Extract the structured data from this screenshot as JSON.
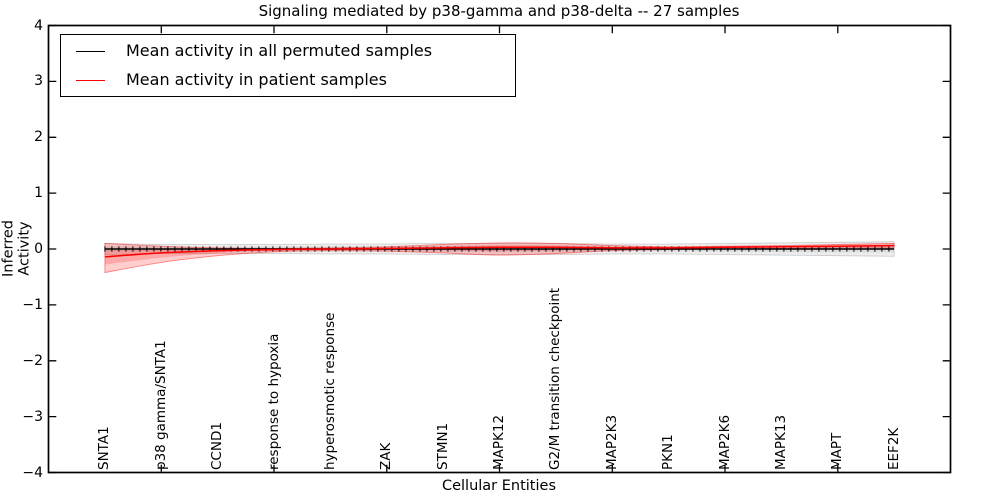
{
  "chart_data": {
    "type": "line",
    "title": "Signaling mediated by p38-gamma and p38-delta -- 27 samples",
    "xlabel": "Cellular Entities",
    "ylabel": "Inferred Activity",
    "xlim": [
      0,
      16
    ],
    "ylim": [
      -4,
      4
    ],
    "ytick_labels": [
      "4",
      "3",
      "2",
      "1",
      "0",
      "−1",
      "−2",
      "−3",
      "−4"
    ],
    "ytick_values": [
      4,
      3,
      2,
      1,
      0,
      -1,
      -2,
      -3,
      -4
    ],
    "xtick_values": [
      2,
      4,
      6,
      8,
      10,
      12,
      14
    ],
    "grid": false,
    "legend_position": "upper left",
    "categories": [
      "SNTA1",
      "p38 gamma/SNTA1",
      "CCND1",
      "response to hypoxia",
      "hyperosmotic response",
      "ZAK",
      "STMN1",
      "MAPK12",
      "G2/M transition checkpoint",
      "MAP2K3",
      "PKN1",
      "MAP2K6",
      "MAPK13",
      "MAPT",
      "EEF2K"
    ],
    "x": [
      1,
      2,
      3,
      4,
      5,
      6,
      7,
      8,
      9,
      10,
      11,
      12,
      13,
      14,
      15
    ],
    "series": [
      {
        "name": "Mean activity in all permuted samples",
        "color": "#000000",
        "marker": "plus-ticks",
        "values": [
          0,
          0,
          0,
          0,
          0,
          0,
          0,
          0,
          0,
          0,
          0,
          0,
          0,
          0,
          0
        ],
        "band_upper": [
          0.1,
          0.08,
          0.08,
          0.08,
          0.09,
          0.09,
          0.1,
          0.1,
          0.1,
          0.09,
          0.09,
          0.1,
          0.11,
          0.12,
          0.13
        ],
        "band_lower": [
          -0.1,
          -0.08,
          -0.08,
          -0.08,
          -0.09,
          -0.09,
          -0.1,
          -0.1,
          -0.1,
          -0.09,
          -0.09,
          -0.1,
          -0.11,
          -0.12,
          -0.13
        ],
        "band_color": "#000000",
        "band_alpha": 0.07
      },
      {
        "name": "Mean activity in patient samples",
        "color": "#ff0000",
        "marker": "none",
        "values": [
          -0.14,
          -0.07,
          -0.03,
          -0.01,
          0.0,
          0.01,
          0.02,
          0.03,
          0.03,
          0.02,
          0.02,
          0.03,
          0.04,
          0.05,
          0.06
        ],
        "band_upper": [
          0.1,
          0.05,
          0.02,
          0.01,
          0.02,
          0.04,
          0.08,
          0.11,
          0.1,
          0.06,
          0.04,
          0.05,
          0.06,
          0.08,
          0.1
        ],
        "band_lower": [
          -0.42,
          -0.24,
          -0.12,
          -0.05,
          -0.03,
          -0.04,
          -0.07,
          -0.11,
          -0.08,
          -0.03,
          -0.01,
          0.0,
          0.01,
          0.02,
          0.02
        ],
        "band_color": "#ff0000",
        "band_alpha": 0.19
      }
    ]
  }
}
